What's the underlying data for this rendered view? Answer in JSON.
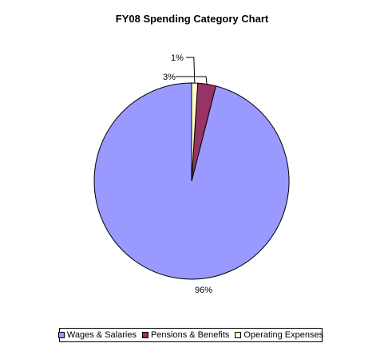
{
  "chart_data": {
    "type": "pie",
    "title": "FY08 Spending Category Chart",
    "categories": [
      "Wages & Salaries",
      "Pensions & Benefits",
      "Operating Expenses"
    ],
    "values": [
      96,
      3,
      1
    ],
    "labels": [
      "96%",
      "3%",
      "1%"
    ],
    "colors": [
      "#9999ff",
      "#993366",
      "#ffffcc"
    ],
    "legend_position": "bottom"
  }
}
